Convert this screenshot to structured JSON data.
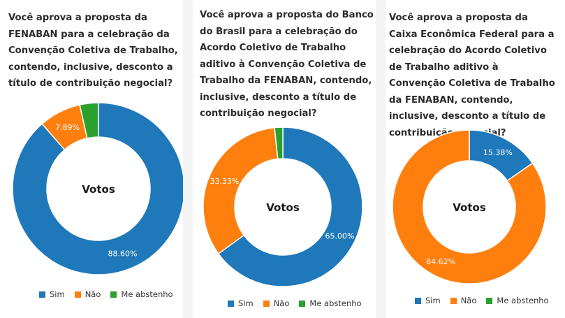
{
  "colors": {
    "sim": "#1f78b9",
    "nao": "#ff7f0e",
    "abstenho": "#2ca02c"
  },
  "legend": [
    "Sim",
    "Não",
    "Me abstenho"
  ],
  "center_label": "Votos",
  "panels": [
    {
      "question": "Você aprova a proposta da FENABAN para a celebração da Convenção Coletiva de Trabalho, contendo, inclusive, desconto a título de contribuição negocial?"
    },
    {
      "question": "Você aprova a proposta do Banco do Brasil para a celebração do Acordo Coletivo de Trabalho aditivo à Convenção Coletiva de Trabalho da FENABAN, contendo, inclusive, desconto a título de contribuição negocial?"
    },
    {
      "question": "Você aprova a proposta da Caixa Econômica Federal para a celebração do Acordo Coletivo de Trabalho aditivo à Convenção Coletiva de Trabalho da FENABAN, contendo, inclusive, desconto a título de contribuição negocial?"
    }
  ],
  "chart_data": [
    {
      "type": "pie",
      "categories": [
        "Sim",
        "Não",
        "Me abstenho"
      ],
      "values": [
        88.6,
        7.89,
        3.51
      ],
      "data_labels": [
        "88.60%",
        "7.89%",
        ""
      ],
      "legend": "bottom"
    },
    {
      "type": "pie",
      "categories": [
        "Sim",
        "Não",
        "Me abstenho"
      ],
      "values": [
        65.0,
        33.33,
        1.67
      ],
      "data_labels": [
        "65.00%",
        "33.33%",
        ""
      ],
      "legend": "bottom"
    },
    {
      "type": "pie",
      "categories": [
        "Sim",
        "Não",
        "Me abstenho"
      ],
      "values": [
        15.38,
        84.62,
        0
      ],
      "data_labels": [
        "15.38%",
        "84.62%",
        ""
      ],
      "legend": "bottom"
    }
  ]
}
